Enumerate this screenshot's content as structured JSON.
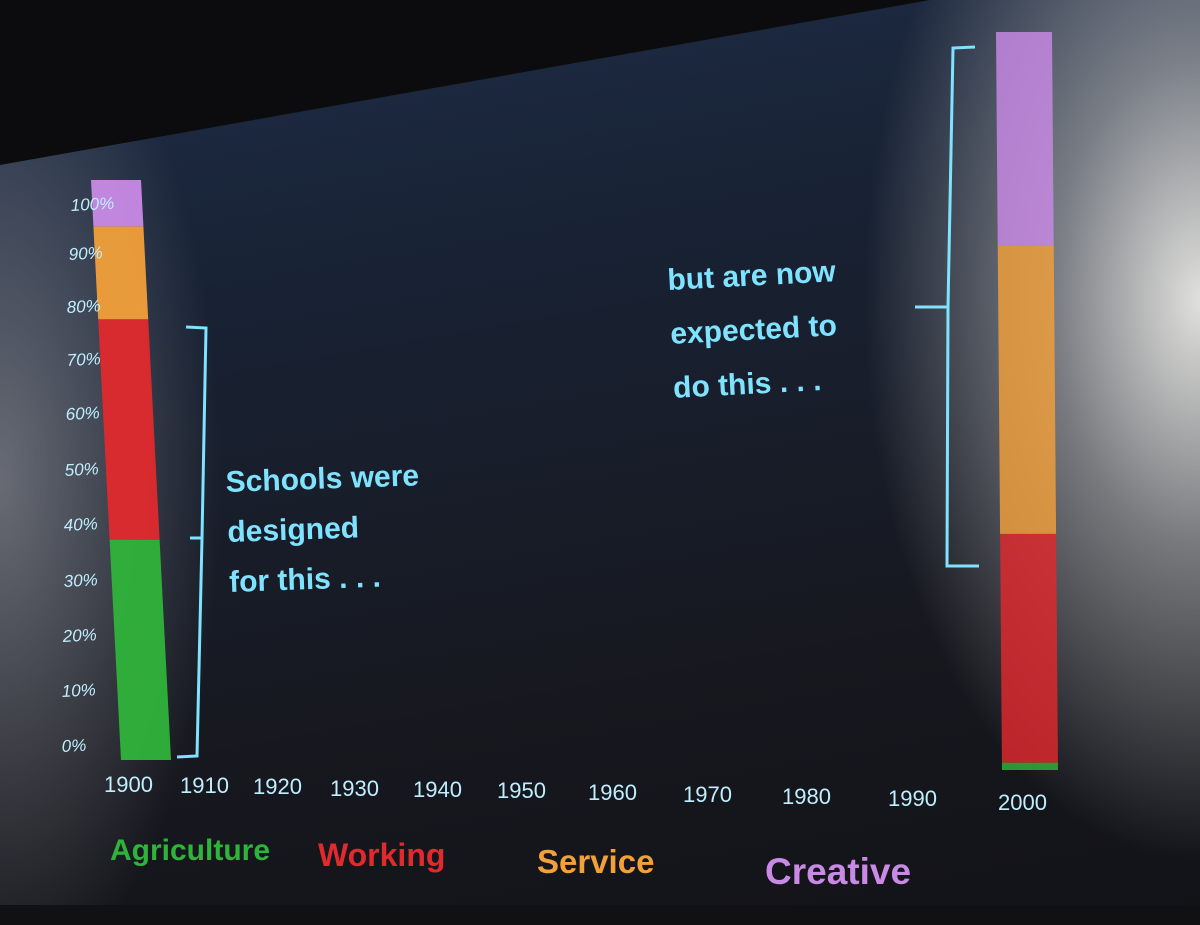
{
  "chart_data": {
    "type": "bar",
    "stacked": true,
    "y_unit": "%",
    "ylim": [
      0,
      100
    ],
    "y_ticks": [
      "0%",
      "10%",
      "20%",
      "30%",
      "40%",
      "50%",
      "60%",
      "70%",
      "80%",
      "90%",
      "100%"
    ],
    "x_ticks": [
      "1900",
      "1910",
      "1920",
      "1930",
      "1940",
      "1950",
      "1960",
      "1970",
      "1980",
      "1990",
      "2000"
    ],
    "categories": [
      "1900",
      "2000"
    ],
    "series": [
      {
        "name": "Agriculture",
        "color": "#2fb33a",
        "values": [
          38,
          1
        ]
      },
      {
        "name": "Working",
        "color": "#e02a2e",
        "values": [
          38,
          31
        ]
      },
      {
        "name": "Service",
        "color": "#f2a03a",
        "values": [
          16,
          39
        ]
      },
      {
        "name": "Creative",
        "color": "#c98ae6",
        "values": [
          8,
          29
        ]
      }
    ],
    "annotations": [
      {
        "id": "schools",
        "lines": [
          "Schools were",
          "designed",
          "for this . . ."
        ]
      },
      {
        "id": "expected",
        "lines": [
          "but are now",
          "expected to",
          "do this . . ."
        ]
      }
    ],
    "grid": false,
    "legend": "bottom"
  }
}
